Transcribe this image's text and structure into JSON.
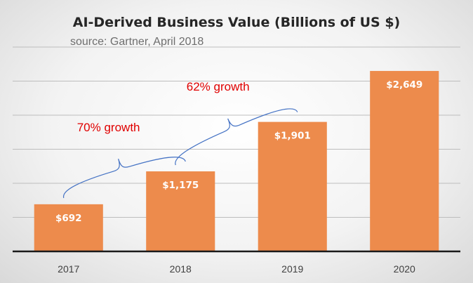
{
  "chart_data": {
    "type": "bar",
    "title": "AI-Derived Business Value (Billions of US $)",
    "subtitle": "source: Gartner, April 2018",
    "categories": [
      "2017",
      "2018",
      "2019",
      "2020"
    ],
    "values": [
      692,
      1175,
      1901,
      2649
    ],
    "data_labels": [
      "$692",
      "$1,175",
      "$1,901",
      "$2,649"
    ],
    "ylim": [
      0,
      3000
    ],
    "grid_step": 500,
    "grid": true,
    "y_tick_labels_shown": false,
    "bar_color": "#ed8b4c",
    "annotations": [
      {
        "text": "70% growth",
        "from": "2017",
        "to": "2018"
      },
      {
        "text": "62% growth",
        "from": "2018",
        "to": "2019"
      }
    ],
    "annotation_color": "#e00000",
    "brace_color": "#4472c4"
  }
}
